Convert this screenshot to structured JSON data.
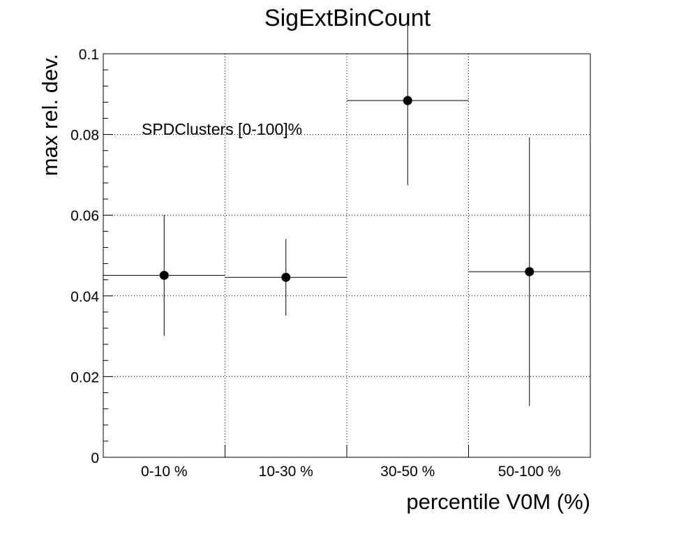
{
  "chart_data": {
    "type": "scatter",
    "title": "SigExtBinCount",
    "xlabel": "percentile V0M (%)",
    "ylabel": "max rel. dev.",
    "categories": [
      "0-10 %",
      "10-30 %",
      "30-50 %",
      "50-100 %"
    ],
    "values": [
      0.0451,
      0.0446,
      0.0884,
      0.046
    ],
    "errors": [
      0.015,
      0.0095,
      0.021,
      0.0333
    ],
    "ylim": [
      0,
      0.1
    ],
    "yticks": [
      0,
      0.02,
      0.04,
      0.06,
      0.08,
      0.1
    ],
    "ytick_labels": [
      "0",
      "0.02",
      "0.04",
      "0.06",
      "0.08",
      "0.1"
    ],
    "grid": true,
    "annotation": "SPDClusters [0-100]%",
    "marker_color": "#000000"
  }
}
